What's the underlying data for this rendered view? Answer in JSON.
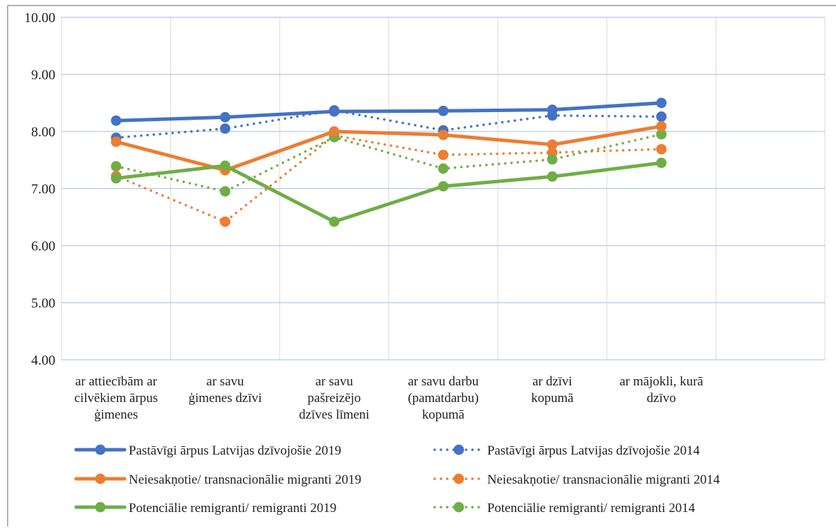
{
  "chart_data": {
    "type": "line",
    "title": "",
    "xlabel": "",
    "ylabel": "",
    "ylim": [
      4,
      10
    ],
    "yticks": [
      "10.00",
      "9.00",
      "8.00",
      "7.00",
      "6.00",
      "5.00",
      "4.00"
    ],
    "grid": true,
    "legend_position": "bottom",
    "categories": [
      [
        "ar attiecībām ar",
        "cilvēkiem ārpus",
        "ģimenes"
      ],
      [
        "ar savu",
        "ģimenes dzīvi"
      ],
      [
        "ar savu",
        "pašreizējo",
        "dzīves līmeni"
      ],
      [
        "ar savu darbu",
        "(pamatdarbu)",
        "kopumā"
      ],
      [
        "ar dzīvi",
        "kopumā"
      ],
      [
        "ar mājokli, kurā",
        "dzīvo"
      ]
    ],
    "series": [
      {
        "name": "Pastāvīgi ārpus Latvijas dzīvojošie  2019",
        "values": [
          8.19,
          8.25,
          8.35,
          8.36,
          8.38,
          8.5
        ],
        "color": "#4472C4",
        "style": "solid"
      },
      {
        "name": "Pastāvīgi ārpus Latvijas dzīvojošie  2014",
        "values": [
          7.89,
          8.05,
          8.37,
          8.02,
          8.28,
          8.26
        ],
        "color": "#4472C4",
        "style": "dotted"
      },
      {
        "name": "Neiesakņotie/ transnacionālie migranti  2019",
        "values": [
          7.82,
          7.32,
          8.0,
          7.94,
          7.77,
          8.09
        ],
        "color": "#ED7D31",
        "style": "solid"
      },
      {
        "name": "Neiesakņotie/ transnacionālie migranti  2014",
        "values": [
          7.22,
          6.42,
          7.93,
          7.59,
          7.63,
          7.69
        ],
        "color": "#ED7D31",
        "style": "dotted"
      },
      {
        "name": "Potenciālie remigranti/ remigranti  2019",
        "values": [
          7.18,
          7.4,
          6.42,
          7.04,
          7.21,
          7.45
        ],
        "color": "#70AD47",
        "style": "solid"
      },
      {
        "name": "Potenciālie remigranti/ remigranti  2014",
        "values": [
          7.39,
          6.95,
          7.9,
          7.35,
          7.51,
          7.95
        ],
        "color": "#70AD47",
        "style": "dotted"
      }
    ]
  }
}
